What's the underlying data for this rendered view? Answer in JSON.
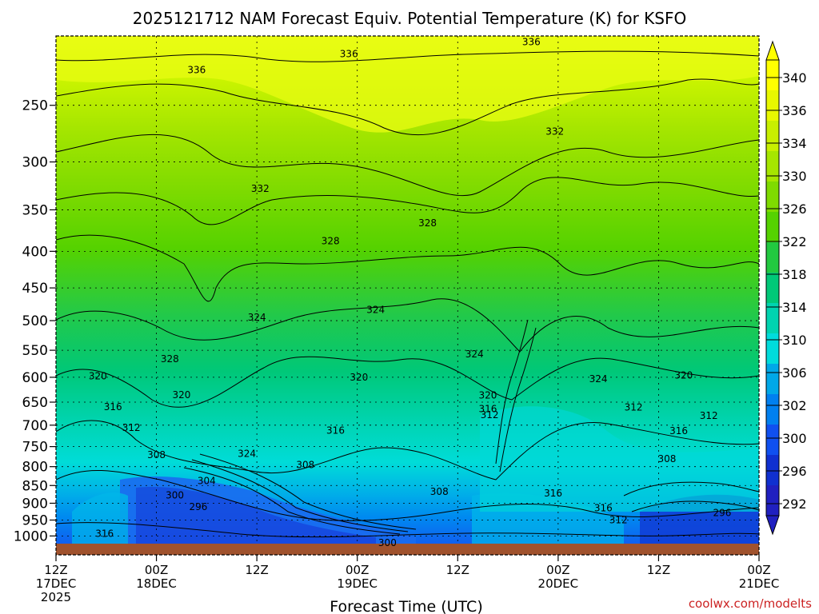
{
  "chart_data": {
    "type": "heatmap",
    "title": "2025121712 NAM Forecast Equiv. Potential Temperature (K) for KSFO",
    "xlabel": "Forecast Time (UTC)",
    "ylabel": "",
    "x_ticks": [
      {
        "hour": 0,
        "line1": "12Z",
        "line2": "17DEC",
        "line3": "2025"
      },
      {
        "hour": 12,
        "line1": "00Z",
        "line2": "18DEC",
        "line3": ""
      },
      {
        "hour": 24,
        "line1": "12Z",
        "line2": "",
        "line3": ""
      },
      {
        "hour": 36,
        "line1": "00Z",
        "line2": "19DEC",
        "line3": ""
      },
      {
        "hour": 48,
        "line1": "12Z",
        "line2": "",
        "line3": ""
      },
      {
        "hour": 60,
        "line1": "00Z",
        "line2": "20DEC",
        "line3": ""
      },
      {
        "hour": 72,
        "line1": "12Z",
        "line2": "",
        "line3": ""
      },
      {
        "hour": 84,
        "line1": "00Z",
        "line2": "21DEC",
        "line3": ""
      }
    ],
    "xlim": [
      0,
      84
    ],
    "y_ticks": [
      250,
      300,
      350,
      400,
      450,
      500,
      550,
      600,
      650,
      700,
      750,
      800,
      850,
      900,
      950,
      1000
    ],
    "ylim_hpa": [
      200,
      1025
    ],
    "colorbar": {
      "labels": [
        "340",
        "336",
        "334",
        "330",
        "326",
        "322",
        "318",
        "314",
        "310",
        "306",
        "302",
        "300",
        "296",
        "292"
      ],
      "colors": [
        "#ffff00",
        "#e8f800",
        "#c8ef00",
        "#a6e600",
        "#7fdb00",
        "#55d200",
        "#22c940",
        "#00c878",
        "#00d4b0",
        "#00dcdc",
        "#00a8e8",
        "#0080f0",
        "#1050f0",
        "#1030d0",
        "#2020c0"
      ]
    },
    "contour_labels": [
      {
        "text": "336",
        "hour": 16.8,
        "p": 223
      },
      {
        "text": "336",
        "hour": 35.0,
        "p": 212
      },
      {
        "text": "336",
        "hour": 56.8,
        "p": 204
      },
      {
        "text": "332",
        "hour": 59.6,
        "p": 272
      },
      {
        "text": "332",
        "hour": 24.4,
        "p": 327
      },
      {
        "text": "328",
        "hour": 32.8,
        "p": 387
      },
      {
        "text": "328",
        "hour": 44.4,
        "p": 365
      },
      {
        "text": "328",
        "hour": 13.6,
        "p": 566
      },
      {
        "text": "324",
        "hour": 24.0,
        "p": 495
      },
      {
        "text": "324",
        "hour": 38.2,
        "p": 483
      },
      {
        "text": "324",
        "hour": 50.0,
        "p": 557
      },
      {
        "text": "324",
        "hour": 64.8,
        "p": 603
      },
      {
        "text": "320",
        "hour": 5.0,
        "p": 598
      },
      {
        "text": "320",
        "hour": 15.0,
        "p": 635
      },
      {
        "text": "320",
        "hour": 36.2,
        "p": 600
      },
      {
        "text": "320",
        "hour": 51.6,
        "p": 636
      },
      {
        "text": "320",
        "hour": 75.0,
        "p": 596
      },
      {
        "text": "316",
        "hour": 6.8,
        "p": 660
      },
      {
        "text": "316",
        "hour": 33.4,
        "p": 712
      },
      {
        "text": "316",
        "hour": 51.6,
        "p": 664
      },
      {
        "text": "316",
        "hour": 59.4,
        "p": 872
      },
      {
        "text": "316",
        "hour": 74.4,
        "p": 713
      },
      {
        "text": "316",
        "hour": 65.4,
        "p": 914
      },
      {
        "text": "312",
        "hour": 9.0,
        "p": 706
      },
      {
        "text": "312",
        "hour": 51.8,
        "p": 677
      },
      {
        "text": "312",
        "hour": 69.0,
        "p": 661
      },
      {
        "text": "312",
        "hour": 78.0,
        "p": 679
      },
      {
        "text": "312",
        "hour": 67.2,
        "p": 950
      },
      {
        "text": "308",
        "hour": 12.0,
        "p": 770
      },
      {
        "text": "308",
        "hour": 29.8,
        "p": 795
      },
      {
        "text": "308",
        "hour": 45.8,
        "p": 867
      },
      {
        "text": "308",
        "hour": 73.0,
        "p": 780
      },
      {
        "text": "304",
        "hour": 18.0,
        "p": 838
      },
      {
        "text": "300",
        "hour": 14.2,
        "p": 877
      },
      {
        "text": "300",
        "hour": 39.6,
        "p": 1023
      },
      {
        "text": "296",
        "hour": 17.0,
        "p": 910
      },
      {
        "text": "296",
        "hour": 79.6,
        "p": 928
      },
      {
        "text": "324",
        "hour": 22.8,
        "p": 767
      },
      {
        "text": "316",
        "hour": 5.8,
        "p": 993
      }
    ],
    "credit": "coolwx.com/modelts"
  }
}
